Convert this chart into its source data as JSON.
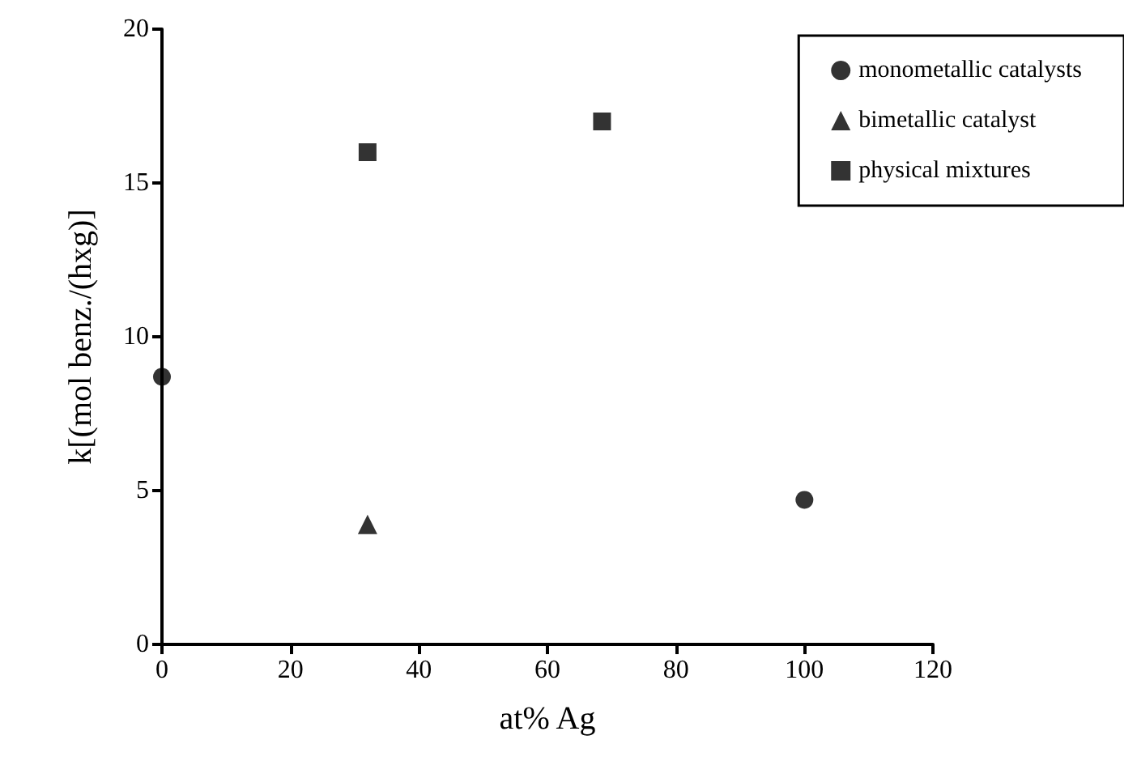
{
  "chart_data": {
    "type": "scatter",
    "xlabel": "at% Ag",
    "ylabel": "k[(mol benz./(hxg)]",
    "xlim": [
      0,
      120
    ],
    "xticks": [
      0,
      20,
      40,
      60,
      80,
      100,
      120
    ],
    "ylim": [
      0,
      20
    ],
    "yticks": [
      0,
      5,
      10,
      15,
      20
    ],
    "grid": false,
    "legend": "top right",
    "series": [
      {
        "name": "monometallic catalysts",
        "color": "#000000",
        "marker": "circle",
        "x": [
          0,
          100
        ],
        "values": [
          8.7,
          4.7
        ]
      },
      {
        "name": "bimetallic catalyst",
        "color": "#000000",
        "marker": "triangle",
        "x": [
          32
        ],
        "values": [
          3.9
        ]
      },
      {
        "name": "physical mixtures",
        "color": "#000000",
        "marker": "square",
        "x": [
          32,
          68.5
        ],
        "values": [
          16,
          17
        ]
      }
    ]
  }
}
